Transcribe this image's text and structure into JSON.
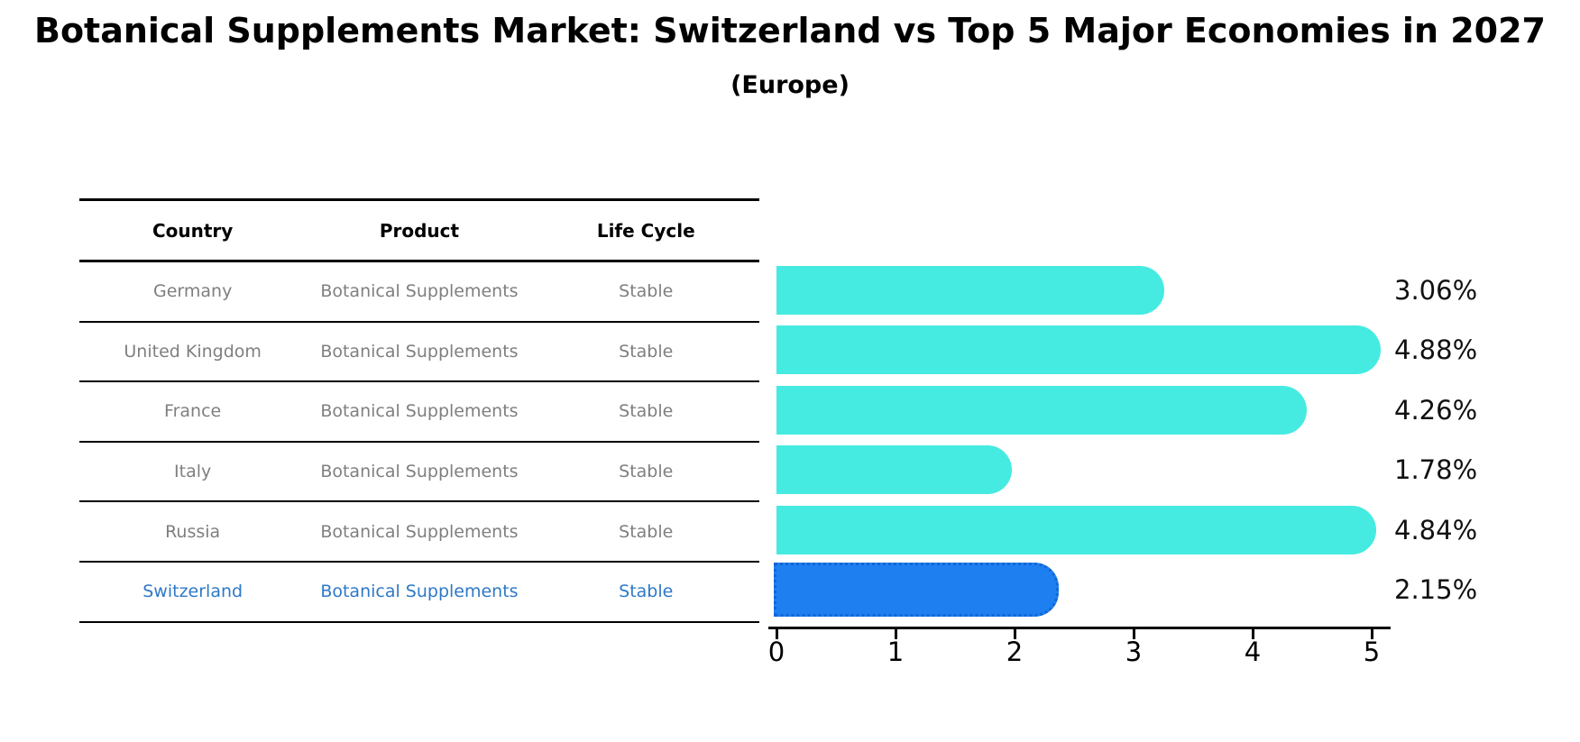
{
  "title": "Botanical Supplements Market: Switzerland vs Top 5 Major Economies in 2027",
  "subtitle": "(Europe)",
  "table": {
    "columns": [
      "Country",
      "Product",
      "Life Cycle"
    ],
    "rows": [
      {
        "country": "Germany",
        "product": "Botanical Supplements",
        "life_cycle": "Stable",
        "highlight": false
      },
      {
        "country": "United Kingdom",
        "product": "Botanical Supplements",
        "life_cycle": "Stable",
        "highlight": false
      },
      {
        "country": "France",
        "product": "Botanical Supplements",
        "life_cycle": "Stable",
        "highlight": false
      },
      {
        "country": "Italy",
        "product": "Botanical Supplements",
        "life_cycle": "Stable",
        "highlight": false
      },
      {
        "country": "Russia",
        "product": "Botanical Supplements",
        "life_cycle": "Stable",
        "highlight": false
      },
      {
        "country": "Switzerland",
        "product": "Botanical Supplements",
        "life_cycle": "Stable",
        "highlight": true
      }
    ]
  },
  "chart_data": {
    "type": "bar",
    "orientation": "horizontal",
    "title": "Botanical Supplements Market: Switzerland vs Top 5 Major Economies in 2027 (Europe)",
    "categories": [
      "Germany",
      "United Kingdom",
      "France",
      "Italy",
      "Russia",
      "Switzerland"
    ],
    "values": [
      3.06,
      4.88,
      4.26,
      1.78,
      4.84,
      2.15
    ],
    "value_labels": [
      "3.06%",
      "4.88%",
      "4.26%",
      "1.78%",
      "4.84%",
      "2.15%"
    ],
    "xlim": [
      0,
      5
    ],
    "x_ticks": [
      0,
      1,
      2,
      3,
      4,
      5
    ],
    "grid": false,
    "legend": false,
    "highlight_category": "Switzerland"
  },
  "colors": {
    "bar_default": "#45eae0",
    "bar_highlight": "#1e80f0",
    "bar_highlight_border": "#1266d6",
    "table_text": "#7f7f7f",
    "table_header_text": "#000000",
    "highlight_text": "#2e79c7",
    "axis": "#000000"
  }
}
